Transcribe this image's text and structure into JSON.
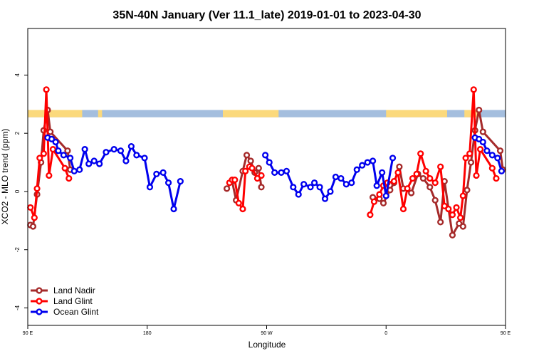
{
  "chart_data": {
    "type": "line",
    "title": "35N-40N January (Ver 11.1_late)   2019-01-01 to 2023-04-30",
    "xlabel": "Longitude",
    "ylabel": "XCO2 - MLO trend (ppm)",
    "xlim": [
      90,
      450
    ],
    "ylim": [
      -4.6,
      5.6
    ],
    "x_ticks": [
      {
        "value": 90,
        "label": "90 E"
      },
      {
        "value": 180,
        "label": "180"
      },
      {
        "value": 270,
        "label": "90 W"
      },
      {
        "value": 360,
        "label": "0"
      },
      {
        "value": 450,
        "label": "90 E"
      },
      {
        "value": 540,
        "label": "180"
      }
    ],
    "y_ticks": [
      {
        "value": -4,
        "label": "-4"
      },
      {
        "value": -2,
        "label": "-2"
      },
      {
        "value": 0,
        "label": "0"
      },
      {
        "value": 2,
        "label": "2"
      },
      {
        "value": 4,
        "label": "4"
      }
    ],
    "land_band": {
      "y_range": [
        2.55,
        2.8
      ],
      "ocean_color": "#a4bede",
      "land_color": "#fbd97c",
      "land_segments": [
        [
          90,
          131
        ],
        [
          143,
          146
        ],
        [
          237,
          279
        ],
        [
          360,
          406
        ],
        [
          419,
          431
        ],
        [
          473,
          494
        ],
        [
          509,
          522
        ]
      ]
    },
    "legend": {
      "position": "bottom-left"
    },
    "series": [
      {
        "name": "Land Nadir",
        "color": "#a52a2a",
        "segments": [
          [
            [
              92,
              -1.15
            ],
            [
              94,
              -1.2
            ],
            [
              97,
              -0.1
            ],
            [
              100,
              1.0
            ],
            [
              102,
              2.1
            ],
            [
              105,
              2.8
            ],
            [
              107,
              2.05
            ],
            [
              120,
              1.4
            ],
            [
              122,
              0.75
            ]
          ],
          [
            [
              240,
              0.1
            ],
            [
              244,
              0.35
            ],
            [
              247,
              -0.3
            ],
            [
              252,
              0.7
            ],
            [
              255,
              1.25
            ],
            [
              258,
              1.05
            ],
            [
              261,
              0.65
            ],
            [
              264,
              0.8
            ],
            [
              266,
              0.15
            ]
          ],
          [
            [
              350,
              -0.2
            ],
            [
              355,
              -0.25
            ],
            [
              358,
              -0.4
            ],
            [
              363,
              0.05
            ],
            [
              366,
              0.3
            ],
            [
              370,
              0.85
            ],
            [
              373,
              0.1
            ],
            [
              379,
              -0.05
            ],
            [
              384,
              0.6
            ],
            [
              388,
              0.45
            ],
            [
              393,
              0.15
            ],
            [
              397,
              -0.3
            ],
            [
              401,
              -1.05
            ],
            [
              404,
              0.35
            ],
            [
              410,
              -1.5
            ],
            [
              415,
              -1.1
            ],
            [
              418,
              -1.2
            ],
            [
              421,
              0.05
            ],
            [
              424,
              1.0
            ],
            [
              427,
              2.1
            ],
            [
              430,
              2.8
            ],
            [
              433,
              2.05
            ],
            [
              446,
              1.4
            ],
            [
              448,
              0.75
            ]
          ]
        ]
      },
      {
        "name": "Land Glint",
        "color": "#ff0000",
        "segments": [
          [
            [
              92,
              -0.55
            ],
            [
              95,
              -0.9
            ],
            [
              97,
              0.1
            ],
            [
              99,
              1.15
            ],
            [
              102,
              1.3
            ],
            [
              104,
              3.5
            ],
            [
              106,
              0.55
            ],
            [
              109,
              1.45
            ],
            [
              118,
              0.8
            ],
            [
              121,
              0.45
            ]
          ],
          [
            [
              242,
              0.3
            ],
            [
              244,
              0.4
            ],
            [
              246,
              0.4
            ],
            [
              249,
              -0.4
            ],
            [
              252,
              -0.6
            ],
            [
              254,
              0.7
            ],
            [
              257,
              0.85
            ],
            [
              259,
              0.8
            ],
            [
              263,
              0.45
            ],
            [
              266,
              0.55
            ]
          ],
          [
            [
              348,
              -0.8
            ],
            [
              351,
              -0.35
            ],
            [
              355,
              -0.1
            ],
            [
              358,
              0.2
            ],
            [
              361,
              0.3
            ],
            [
              366,
              0.35
            ],
            [
              369,
              0.65
            ],
            [
              373,
              -0.6
            ],
            [
              376,
              0.1
            ],
            [
              380,
              0.45
            ],
            [
              383,
              0.6
            ],
            [
              386,
              1.3
            ],
            [
              390,
              0.7
            ],
            [
              393,
              0.45
            ],
            [
              397,
              0.3
            ],
            [
              401,
              0.85
            ],
            [
              404,
              -0.5
            ],
            [
              407,
              -0.6
            ],
            [
              410,
              -0.8
            ],
            [
              413,
              -0.55
            ],
            [
              416,
              -0.9
            ],
            [
              418,
              -0.15
            ],
            [
              420,
              1.15
            ],
            [
              423,
              1.3
            ],
            [
              426,
              3.5
            ],
            [
              428,
              0.55
            ],
            [
              431,
              1.45
            ],
            [
              440,
              0.8
            ],
            [
              443,
              0.45
            ]
          ]
        ]
      },
      {
        "name": "Ocean Glint",
        "color": "#0000ee",
        "segments": [
          [
            [
              105,
              1.85
            ],
            [
              108,
              1.8
            ],
            [
              111,
              1.7
            ],
            [
              113,
              1.4
            ],
            [
              117,
              1.25
            ],
            [
              122,
              1.15
            ],
            [
              125,
              0.7
            ],
            [
              129,
              0.75
            ],
            [
              133,
              1.45
            ],
            [
              136,
              0.95
            ],
            [
              140,
              1.05
            ],
            [
              144,
              0.95
            ],
            [
              149,
              1.35
            ],
            [
              155,
              1.45
            ],
            [
              160,
              1.4
            ],
            [
              164,
              1.05
            ],
            [
              168,
              1.55
            ],
            [
              172,
              1.25
            ],
            [
              178,
              1.15
            ],
            [
              182,
              0.15
            ],
            [
              187,
              0.6
            ],
            [
              192,
              0.65
            ],
            [
              196,
              0.3
            ],
            [
              200,
              -0.6
            ],
            [
              205,
              0.35
            ]
          ],
          [
            [
              269,
              1.25
            ],
            [
              272,
              1.0
            ],
            [
              276,
              0.65
            ],
            [
              281,
              0.65
            ],
            [
              285,
              0.7
            ],
            [
              290,
              0.15
            ],
            [
              294,
              -0.1
            ],
            [
              298,
              0.25
            ],
            [
              303,
              0.15
            ],
            [
              306,
              0.3
            ],
            [
              310,
              0.15
            ],
            [
              314,
              -0.25
            ],
            [
              318,
              0.0
            ],
            [
              322,
              0.5
            ],
            [
              326,
              0.45
            ],
            [
              330,
              0.25
            ],
            [
              334,
              0.3
            ],
            [
              338,
              0.75
            ],
            [
              342,
              0.9
            ],
            [
              346,
              1.0
            ],
            [
              350,
              1.05
            ],
            [
              353,
              0.2
            ],
            [
              357,
              0.65
            ],
            [
              360,
              -0.15
            ],
            [
              365,
              1.15
            ]
          ],
          [
            [
              427,
              1.85
            ],
            [
              430,
              1.8
            ],
            [
              433,
              1.7
            ],
            [
              436,
              1.4
            ],
            [
              440,
              1.25
            ],
            [
              444,
              1.15
            ],
            [
              447,
              0.7
            ],
            [
              451,
              0.75
            ],
            [
              455,
              1.45
            ]
          ]
        ]
      }
    ]
  }
}
